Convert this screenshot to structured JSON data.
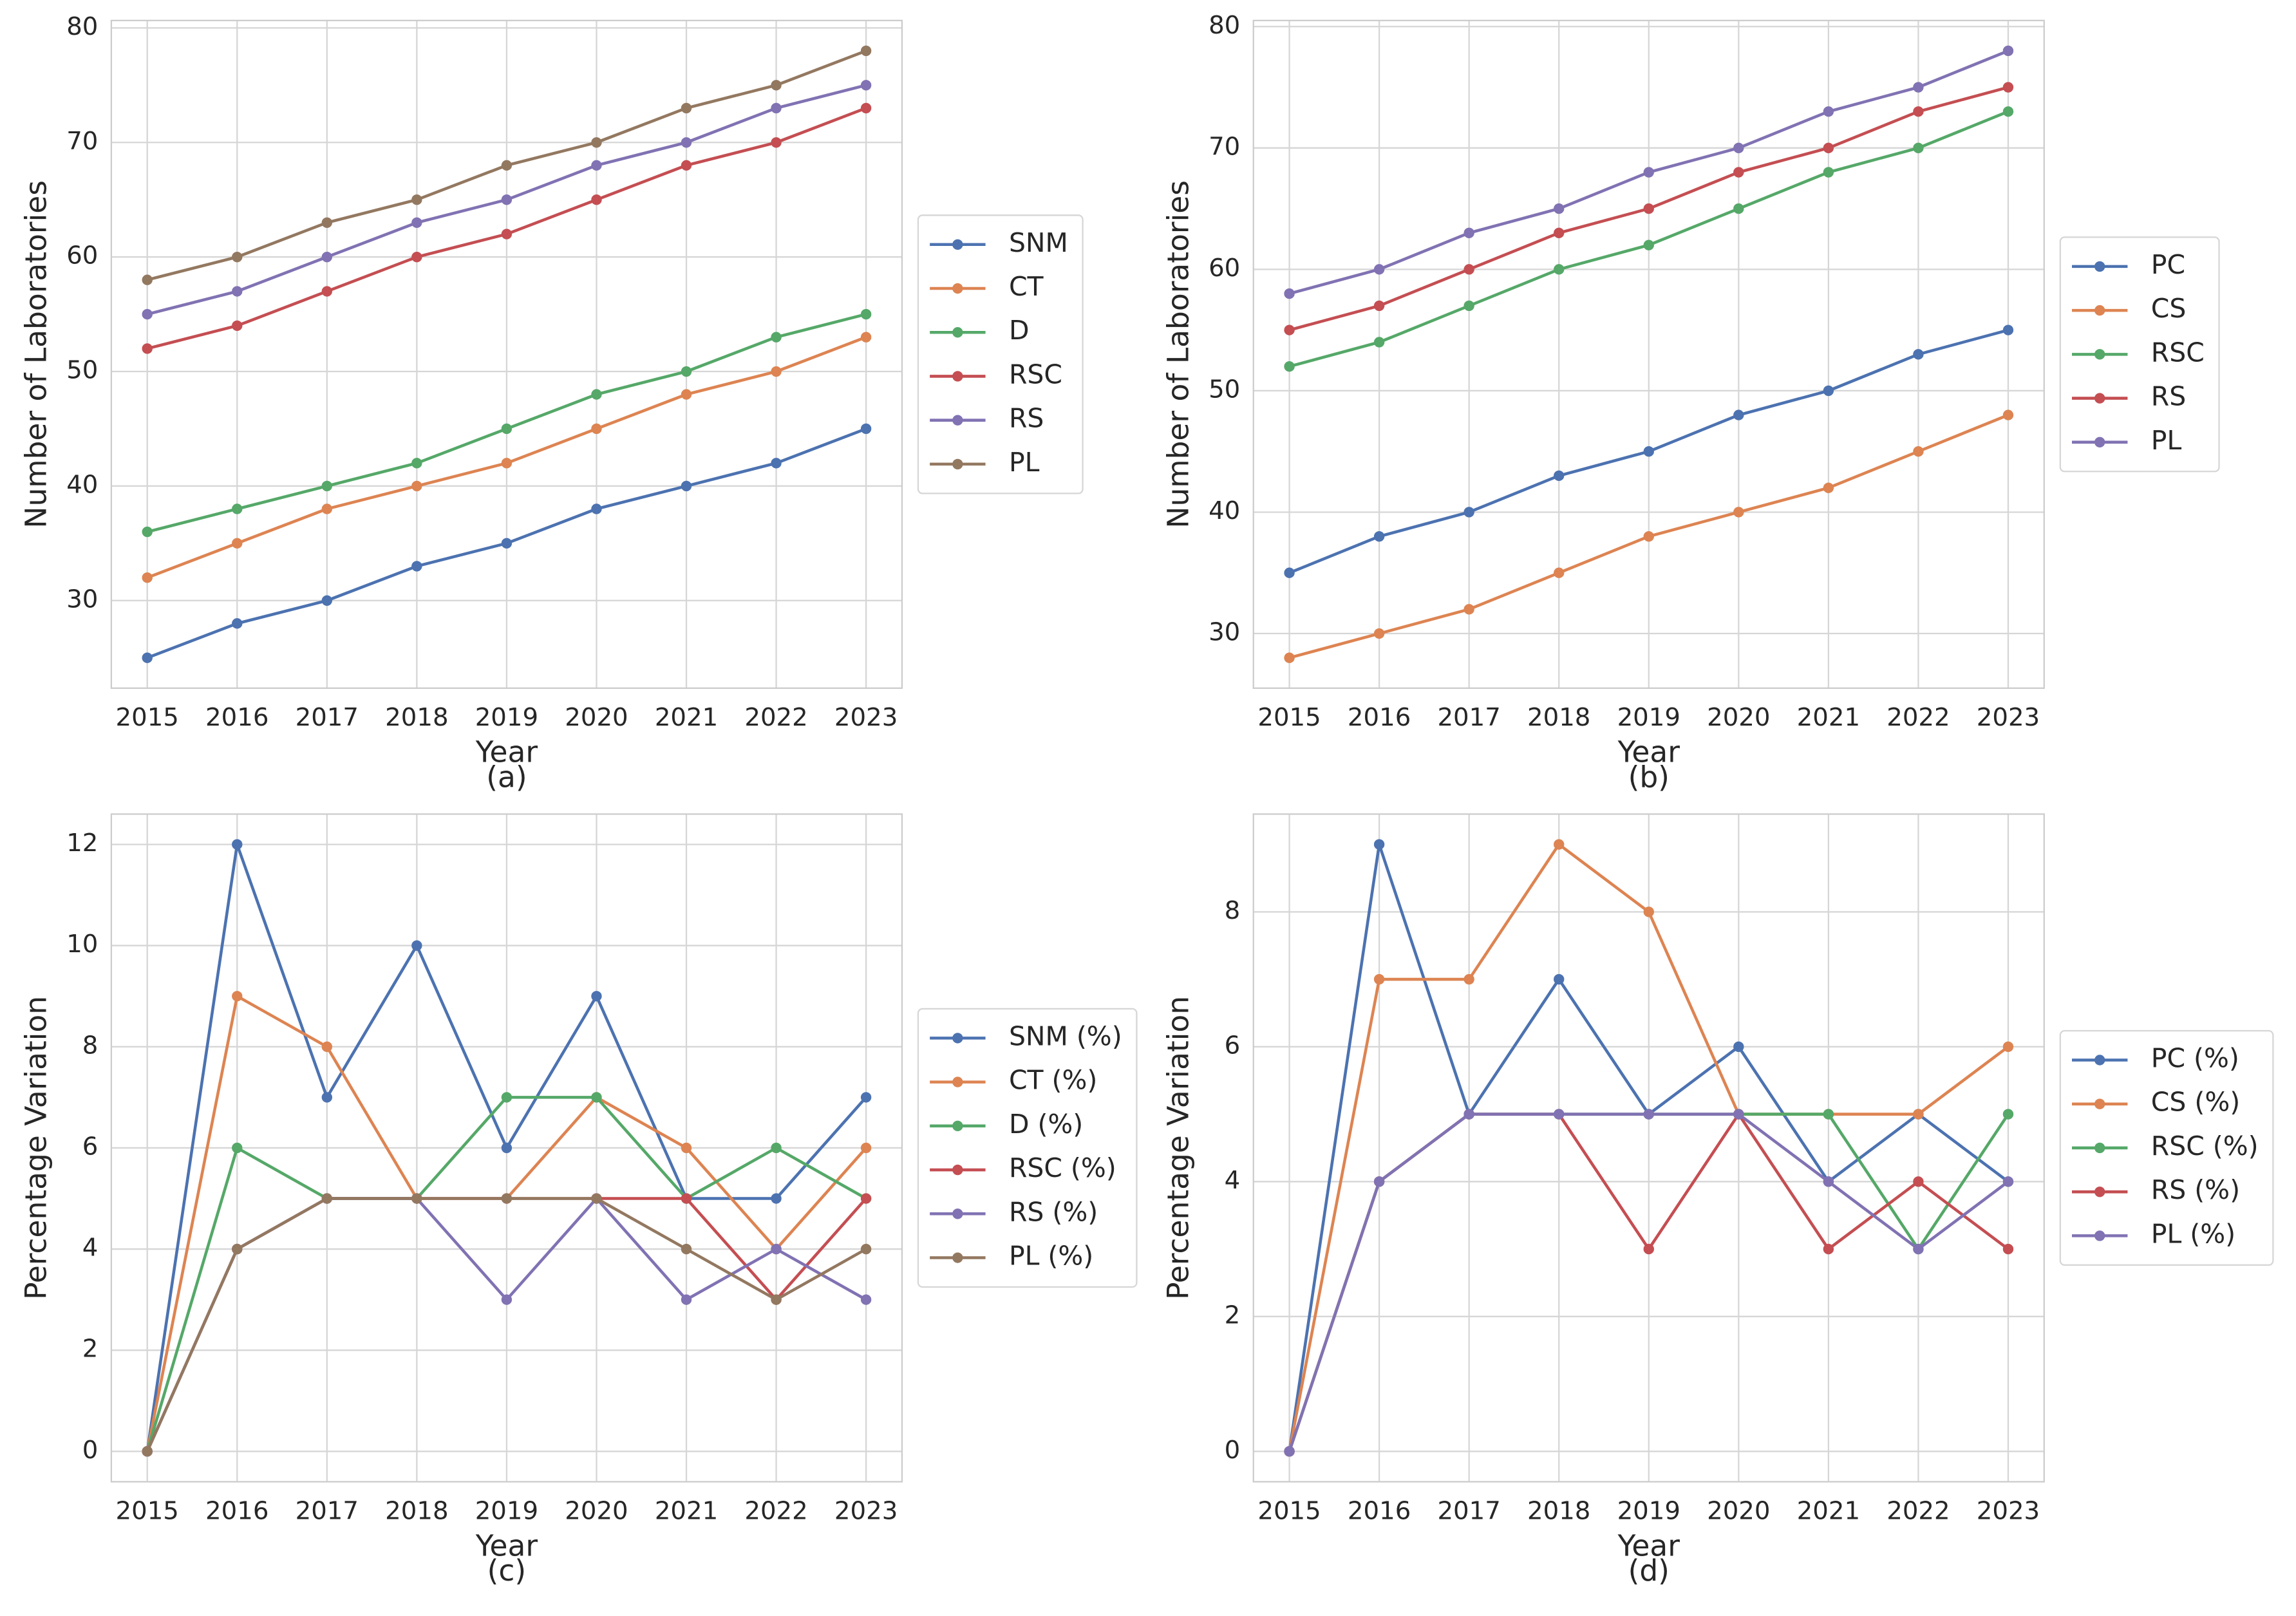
{
  "chart_data": [
    {
      "type": "line",
      "caption": "(a)",
      "xlabel": "Year",
      "ylabel": "Number of Laboratories",
      "x": [
        2015,
        2016,
        2017,
        2018,
        2019,
        2020,
        2021,
        2022,
        2023
      ],
      "xlim": [
        2014.6,
        2023.4
      ],
      "xticks": [
        2015,
        2016,
        2017,
        2018,
        2019,
        2020,
        2021,
        2022,
        2023
      ],
      "ylim": [
        22.35,
        80.65
      ],
      "yticks": [
        30,
        40,
        50,
        60,
        70,
        80
      ],
      "grid": true,
      "legend": "outside right",
      "series": [
        {
          "name": "SNM",
          "color": "#4c72b0",
          "values": [
            25,
            28,
            30,
            33,
            35,
            38,
            40,
            42,
            45
          ]
        },
        {
          "name": "CT",
          "color": "#dd8452",
          "values": [
            32,
            35,
            38,
            40,
            42,
            45,
            48,
            50,
            53
          ]
        },
        {
          "name": "D",
          "color": "#55a868",
          "values": [
            36,
            38,
            40,
            42,
            45,
            48,
            50,
            53,
            55
          ]
        },
        {
          "name": "RSC",
          "color": "#c44e52",
          "values": [
            52,
            54,
            57,
            60,
            62,
            65,
            68,
            70,
            73
          ]
        },
        {
          "name": "RS",
          "color": "#8172b3",
          "values": [
            55,
            57,
            60,
            63,
            65,
            68,
            70,
            73,
            75
          ]
        },
        {
          "name": "PL",
          "color": "#937860",
          "values": [
            58,
            60,
            63,
            65,
            68,
            70,
            73,
            75,
            78
          ]
        }
      ]
    },
    {
      "type": "line",
      "caption": "(b)",
      "xlabel": "Year",
      "ylabel": "Number of Laboratories",
      "x": [
        2015,
        2016,
        2017,
        2018,
        2019,
        2020,
        2021,
        2022,
        2023
      ],
      "xlim": [
        2014.6,
        2023.4
      ],
      "xticks": [
        2015,
        2016,
        2017,
        2018,
        2019,
        2020,
        2021,
        2022,
        2023
      ],
      "ylim": [
        25.5,
        80.5
      ],
      "yticks": [
        30,
        40,
        50,
        60,
        70,
        80
      ],
      "grid": true,
      "legend": "outside right",
      "series": [
        {
          "name": "PC",
          "color": "#4c72b0",
          "values": [
            35,
            38,
            40,
            43,
            45,
            48,
            50,
            53,
            55
          ]
        },
        {
          "name": "CS",
          "color": "#dd8452",
          "values": [
            28,
            30,
            32,
            35,
            38,
            40,
            42,
            45,
            48
          ]
        },
        {
          "name": "RSC",
          "color": "#55a868",
          "values": [
            52,
            54,
            57,
            60,
            62,
            65,
            68,
            70,
            73
          ]
        },
        {
          "name": "RS",
          "color": "#c44e52",
          "values": [
            55,
            57,
            60,
            63,
            65,
            68,
            70,
            73,
            75
          ]
        },
        {
          "name": "PL",
          "color": "#8172b3",
          "values": [
            58,
            60,
            63,
            65,
            68,
            70,
            73,
            75,
            78
          ]
        }
      ]
    },
    {
      "type": "line",
      "caption": "(c)",
      "xlabel": "Year",
      "ylabel": "Percentage Variation",
      "x": [
        2015,
        2016,
        2017,
        2018,
        2019,
        2020,
        2021,
        2022,
        2023
      ],
      "xlim": [
        2014.6,
        2023.4
      ],
      "xticks": [
        2015,
        2016,
        2017,
        2018,
        2019,
        2020,
        2021,
        2022,
        2023
      ],
      "ylim": [
        -0.6,
        12.6
      ],
      "yticks": [
        0,
        2,
        4,
        6,
        8,
        10,
        12
      ],
      "grid": true,
      "legend": "outside right",
      "series": [
        {
          "name": "SNM (%)",
          "color": "#4c72b0",
          "values": [
            0,
            12,
            7,
            10,
            6,
            9,
            5,
            5,
            7
          ]
        },
        {
          "name": "CT (%)",
          "color": "#dd8452",
          "values": [
            0,
            9,
            8,
            5,
            5,
            7,
            6,
            4,
            6
          ]
        },
        {
          "name": "D (%)",
          "color": "#55a868",
          "values": [
            0,
            6,
            5,
            5,
            7,
            7,
            5,
            6,
            5
          ]
        },
        {
          "name": "RSC (%)",
          "color": "#c44e52",
          "values": [
            0,
            4,
            5,
            5,
            5,
            5,
            5,
            3,
            5
          ]
        },
        {
          "name": "RS (%)",
          "color": "#8172b3",
          "values": [
            0,
            4,
            5,
            5,
            3,
            5,
            3,
            4,
            3
          ]
        },
        {
          "name": "PL (%)",
          "color": "#937860",
          "values": [
            0,
            4,
            5,
            5,
            5,
            5,
            4,
            3,
            4
          ]
        }
      ]
    },
    {
      "type": "line",
      "caption": "(d)",
      "xlabel": "Year",
      "ylabel": "Percentage Variation",
      "x": [
        2015,
        2016,
        2017,
        2018,
        2019,
        2020,
        2021,
        2022,
        2023
      ],
      "xlim": [
        2014.6,
        2023.4
      ],
      "xticks": [
        2015,
        2016,
        2017,
        2018,
        2019,
        2020,
        2021,
        2022,
        2023
      ],
      "ylim": [
        -0.45,
        9.45
      ],
      "yticks": [
        0,
        2,
        4,
        6,
        8
      ],
      "grid": true,
      "legend": "outside right",
      "series": [
        {
          "name": "PC (%)",
          "color": "#4c72b0",
          "values": [
            0,
            9,
            5,
            7,
            5,
            6,
            4,
            5,
            4
          ]
        },
        {
          "name": "CS (%)",
          "color": "#dd8452",
          "values": [
            0,
            7,
            7,
            9,
            8,
            5,
            5,
            5,
            6
          ]
        },
        {
          "name": "RSC (%)",
          "color": "#55a868",
          "values": [
            0,
            4,
            5,
            5,
            5,
            5,
            5,
            3,
            5
          ]
        },
        {
          "name": "RS (%)",
          "color": "#c44e52",
          "values": [
            0,
            4,
            5,
            5,
            3,
            5,
            3,
            4,
            3
          ]
        },
        {
          "name": "PL (%)",
          "color": "#8172b3",
          "values": [
            0,
            4,
            5,
            5,
            5,
            5,
            4,
            3,
            4
          ]
        }
      ]
    }
  ]
}
